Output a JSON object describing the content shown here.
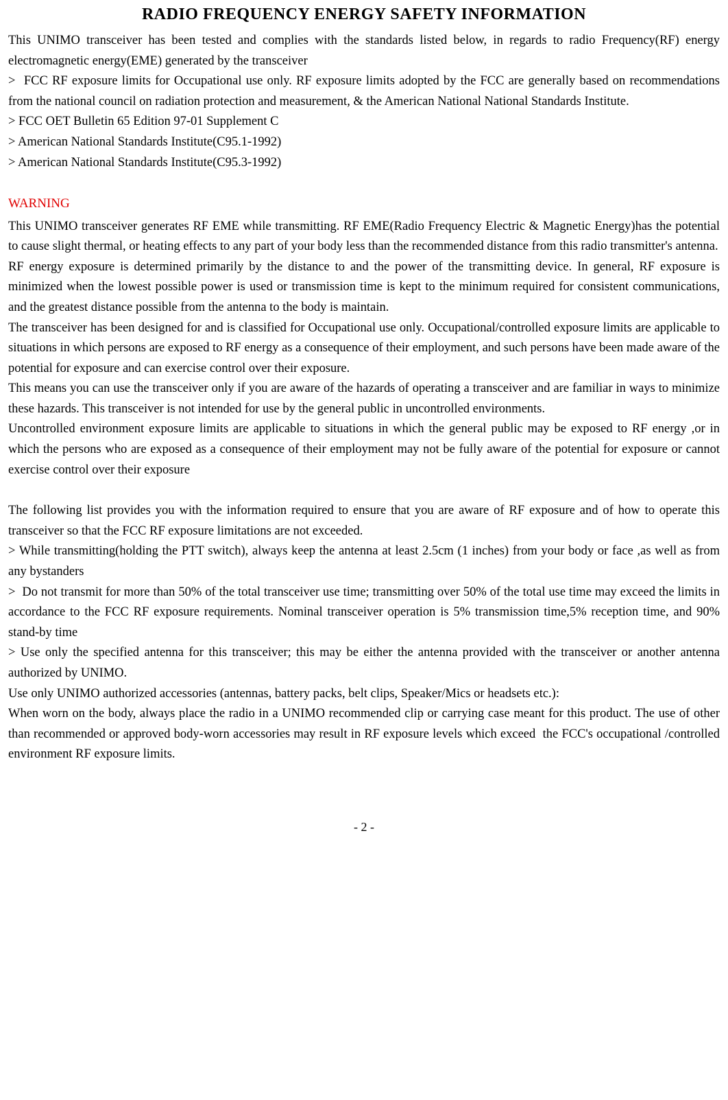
{
  "title": "RADIO FREQUENCY ENERGY SAFETY INFORMATION",
  "intro": "This UNIMO transceiver has been tested and complies with the standards listed below, in regards to radio Frequency(RF) energy electromagnetic energy(EME) generated by the transceiver",
  "bullets1": [
    ">  FCC RF exposure limits for Occupational use only. RF exposure limits adopted by the FCC are generally based on recommendations from the national council on radiation protection and measurement, & the American National National Standards Institute.",
    "> FCC OET Bulletin 65 Edition 97-01 Supplement C",
    "> American National Standards Institute(C95.1-1992)",
    "> American National Standards Institute(C95.3-1992)"
  ],
  "warning_heading": "WARNING",
  "warning_paras": [
    "This UNIMO transceiver generates RF EME while transmitting. RF EME(Radio Frequency Electric & Magnetic Energy)has the potential to cause slight thermal, or heating effects to any part of your body less than the recommended distance from this radio transmitter's antenna.",
    "RF energy exposure is determined primarily by the distance to and the power of the transmitting device. In general, RF exposure is minimized when the lowest possible power is used or transmission time is kept to the minimum required for consistent communications, and the greatest distance possible from the antenna to the body is maintain.",
    "The transceiver has been designed for and is classified for Occupational use only. Occupational/controlled exposure limits are applicable to situations in which persons are exposed to RF energy as a consequence of their employment, and such persons have been made aware of the potential for exposure and can exercise control over their exposure.",
    "This means you can use the transceiver only if you are aware of the hazards of operating a transceiver and are familiar in ways to minimize these hazards. This transceiver is not intended for use by the general public in uncontrolled environments.",
    "Uncontrolled environment exposure limits are applicable to situations in which the general public may be exposed to RF energy ,or in which the persons who are exposed as a consequence of their employment may not be fully aware of the potential for exposure or cannot exercise control over their exposure"
  ],
  "following_intro": "The following list provides you with the information required to ensure that you are aware of RF exposure and of how to operate this transceiver so that the FCC RF exposure limitations are not exceeded.",
  "bullets2": [
    "> While transmitting(holding the PTT switch), always keep the antenna at least 2.5cm (1 inches) from your body or face ,as well as from any bystanders",
    ">  Do not transmit for more than 50% of the total transceiver use time; transmitting over 50% of the total use time may exceed the limits in accordance to the FCC RF exposure requirements. Nominal transceiver operation is 5% transmission time,5% reception time, and 90% stand-by time",
    "> Use only the specified antenna for this transceiver; this may be either the antenna provided with the transceiver or another antenna authorized by UNIMO."
  ],
  "closing_paras": [
    "Use only UNIMO authorized accessories (antennas, battery packs, belt clips, Speaker/Mics or headsets etc.):",
    "When worn on the body, always place the radio in a UNIMO recommended clip or carrying case meant for this product. The use of other than recommended or approved body-worn accessories may result in RF exposure levels which exceed  the FCC's occupational /controlled environment RF exposure limits."
  ],
  "page_number": "- 2 -",
  "colors": {
    "text": "#000000",
    "warning": "#e00000",
    "background": "#ffffff"
  },
  "typography": {
    "title_fontsize": 24,
    "body_fontsize": 18.5,
    "line_height": 1.6,
    "font_family": "serif"
  }
}
